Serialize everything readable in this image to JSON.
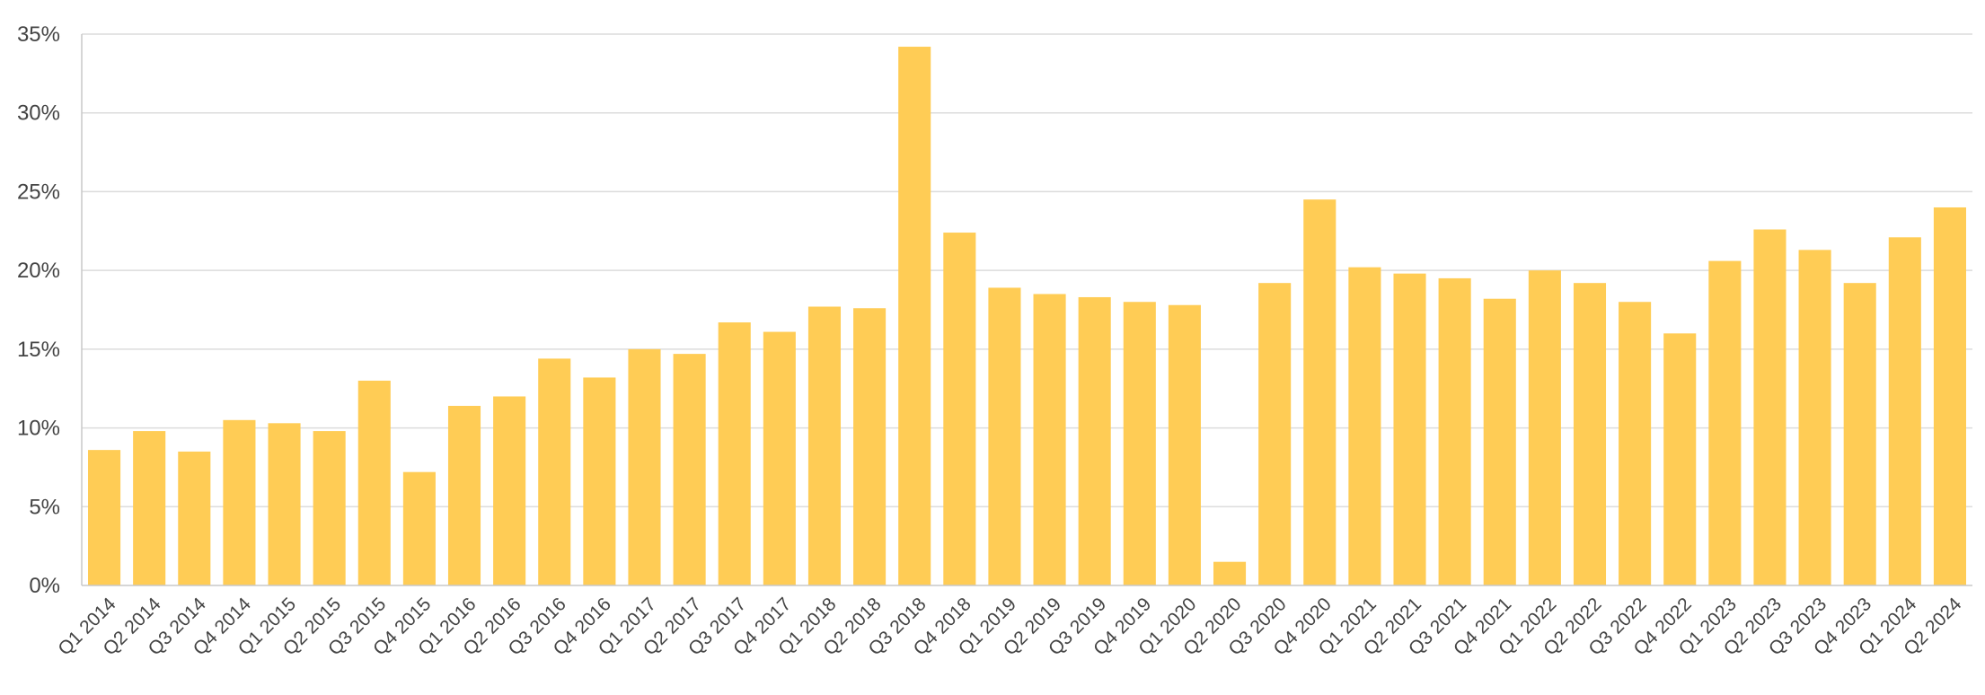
{
  "chart_data": {
    "type": "bar",
    "categories": [
      "Q1 2014",
      "Q2 2014",
      "Q3 2014",
      "Q4 2014",
      "Q1 2015",
      "Q2 2015",
      "Q3 2015",
      "Q4 2015",
      "Q1 2016",
      "Q2 2016",
      "Q3 2016",
      "Q4 2016",
      "Q1 2017",
      "Q2 2017",
      "Q3 2017",
      "Q4 2017",
      "Q1 2018",
      "Q2 2018",
      "Q3 2018",
      "Q4 2018",
      "Q1 2019",
      "Q2 2019",
      "Q3 2019",
      "Q4 2019",
      "Q1 2020",
      "Q2 2020",
      "Q3 2020",
      "Q4 2020",
      "Q1 2021",
      "Q2 2021",
      "Q3 2021",
      "Q4 2021",
      "Q1 2022",
      "Q2 2022",
      "Q3 2022",
      "Q4 2022",
      "Q1 2023",
      "Q2 2023",
      "Q3 2023",
      "Q4 2023",
      "Q1 2024",
      "Q2 2024"
    ],
    "values": [
      8.6,
      9.8,
      8.5,
      10.5,
      10.3,
      9.8,
      13.0,
      7.2,
      11.4,
      12.0,
      14.4,
      13.2,
      15.0,
      14.7,
      16.7,
      16.1,
      17.7,
      17.6,
      34.2,
      22.4,
      18.9,
      18.5,
      18.3,
      18.0,
      17.8,
      1.5,
      19.2,
      24.5,
      20.2,
      19.8,
      19.5,
      18.2,
      20.0,
      19.2,
      18.0,
      16.0,
      20.6,
      22.6,
      21.3,
      19.2,
      22.1,
      24.0
    ],
    "title": "",
    "xlabel": "",
    "ylabel": "",
    "ylim": [
      0,
      35
    ],
    "yticks": [
      "0%",
      "5%",
      "10%",
      "15%",
      "20%",
      "25%",
      "30%",
      "35%"
    ],
    "grid": true,
    "bar_color": "#ffcc55"
  }
}
